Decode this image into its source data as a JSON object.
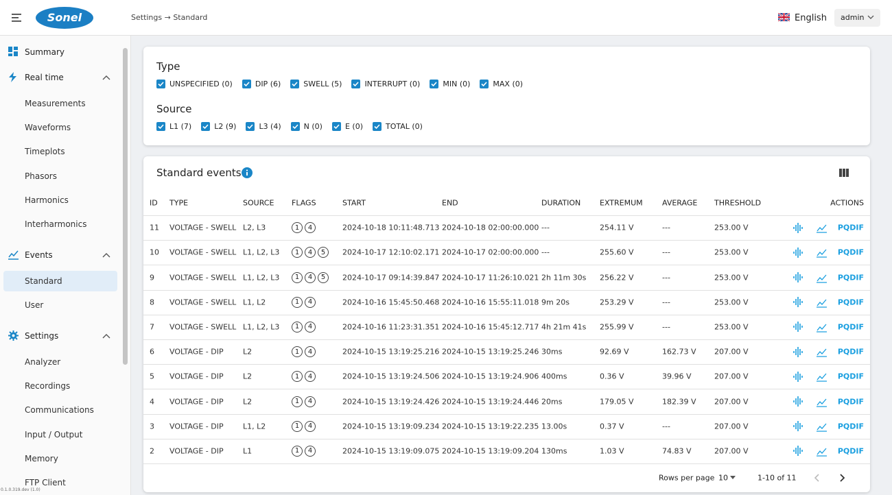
{
  "header": {
    "logo": "Sonel",
    "breadcrumb": "Settings → Standard",
    "language": "English",
    "user": "admin"
  },
  "sidebar": {
    "items": [
      {
        "label": "Summary",
        "children": []
      },
      {
        "label": "Real time",
        "children": [
          "Measurements",
          "Waveforms",
          "Timeplots",
          "Phasors",
          "Harmonics",
          "Interharmonics"
        ]
      },
      {
        "label": "Events",
        "children": [
          "Standard",
          "User"
        ]
      },
      {
        "label": "Settings",
        "children": [
          "Analyzer",
          "Recordings",
          "Communications",
          "Input / Output",
          "Memory",
          "FTP Client"
        ]
      }
    ],
    "selected": "Standard",
    "version": "0.1.0.319.dev (1.0)"
  },
  "filters": {
    "type": {
      "title": "Type",
      "options": [
        "UNSPECIFIED (0)",
        "DIP (6)",
        "SWELL (5)",
        "INTERRUPT (0)",
        "MIN (0)",
        "MAX (0)"
      ]
    },
    "source": {
      "title": "Source",
      "options": [
        "L1 (7)",
        "L2 (9)",
        "L3 (4)",
        "N (0)",
        "E (0)",
        "TOTAL (0)"
      ]
    }
  },
  "events": {
    "title": "Standard events",
    "columns": [
      "ID",
      "TYPE",
      "SOURCE",
      "FLAGS",
      "START",
      "END",
      "DURATION",
      "EXTREMUM",
      "AVERAGE",
      "THRESHOLD",
      "ACTIONS"
    ],
    "action_label": "PQDIF",
    "rows": [
      [
        "11",
        "VOLTAGE - SWELL",
        "L2, L3",
        [
          "1",
          "4"
        ],
        "2024-10-18 10:11:48.713",
        "2024-10-18 02:00:00.000",
        "---",
        "254.11 V",
        "---",
        "253.00 V"
      ],
      [
        "10",
        "VOLTAGE - SWELL",
        "L1, L2, L3",
        [
          "1",
          "4",
          "5"
        ],
        "2024-10-17 12:10:02.171",
        "2024-10-17 02:00:00.000",
        "---",
        "255.60 V",
        "---",
        "253.00 V"
      ],
      [
        "9",
        "VOLTAGE - SWELL",
        "L1, L2, L3",
        [
          "1",
          "4",
          "5"
        ],
        "2024-10-17 09:14:39.847",
        "2024-10-17 11:26:10.021",
        "2h 11m 30s",
        "256.22 V",
        "---",
        "253.00 V"
      ],
      [
        "8",
        "VOLTAGE - SWELL",
        "L1, L2",
        [
          "1",
          "4"
        ],
        "2024-10-16 15:45:50.468",
        "2024-10-16 15:55:11.018",
        "9m 20s",
        "253.29 V",
        "---",
        "253.00 V"
      ],
      [
        "7",
        "VOLTAGE - SWELL",
        "L1, L2, L3",
        [
          "1",
          "4"
        ],
        "2024-10-16 11:23:31.351",
        "2024-10-16 15:45:12.717",
        "4h 21m 41s",
        "255.99 V",
        "---",
        "253.00 V"
      ],
      [
        "6",
        "VOLTAGE - DIP",
        "L2",
        [
          "1",
          "4"
        ],
        "2024-10-15 13:19:25.216",
        "2024-10-15 13:19:25.246",
        "30ms",
        "92.69 V",
        "162.73 V",
        "207.00 V"
      ],
      [
        "5",
        "VOLTAGE - DIP",
        "L2",
        [
          "1",
          "4"
        ],
        "2024-10-15 13:19:24.506",
        "2024-10-15 13:19:24.906",
        "400ms",
        "0.36 V",
        "39.96 V",
        "207.00 V"
      ],
      [
        "4",
        "VOLTAGE - DIP",
        "L2",
        [
          "1",
          "4"
        ],
        "2024-10-15 13:19:24.426",
        "2024-10-15 13:19:24.446",
        "20ms",
        "179.05 V",
        "182.39 V",
        "207.00 V"
      ],
      [
        "3",
        "VOLTAGE - DIP",
        "L1, L2",
        [
          "1",
          "4"
        ],
        "2024-10-15 13:19:09.234",
        "2024-10-15 13:19:22.235",
        "13.00s",
        "0.37 V",
        "---",
        "207.00 V"
      ],
      [
        "2",
        "VOLTAGE - DIP",
        "L1",
        [
          "1",
          "4"
        ],
        "2024-10-15 13:19:09.075",
        "2024-10-15 13:19:09.204",
        "130ms",
        "1.03 V",
        "74.83 V",
        "207.00 V"
      ]
    ]
  },
  "pagination": {
    "rows_label": "Rows per page",
    "rows_per_page": "10",
    "range": "1-10 of 11"
  }
}
